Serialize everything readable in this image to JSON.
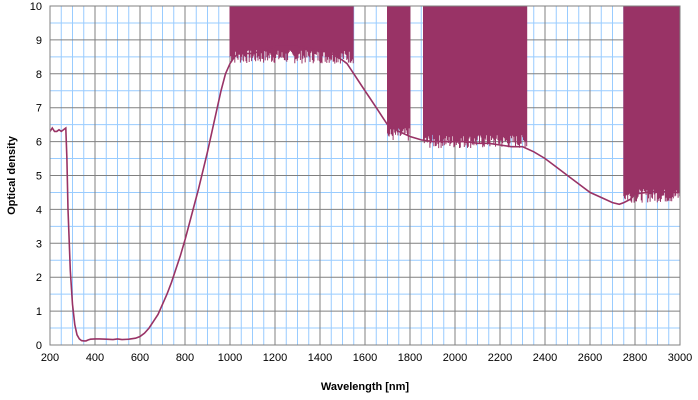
{
  "chart_data": {
    "type": "line",
    "title": "",
    "xlabel": "Wavelength [nm]",
    "ylabel": "Optical density",
    "xlim": [
      200,
      3000
    ],
    "ylim": [
      0,
      10
    ],
    "x_ticks": [
      200,
      400,
      600,
      800,
      1000,
      1200,
      1400,
      1600,
      1800,
      2000,
      2200,
      2400,
      2600,
      2800,
      3000
    ],
    "y_ticks": [
      0,
      1,
      2,
      3,
      4,
      5,
      6,
      7,
      8,
      9,
      10
    ],
    "grid": true,
    "grid_minor": true,
    "legend": "none",
    "colors": {
      "line": "#993366",
      "major_grid": "#808080",
      "minor_grid": "#99CCFF"
    },
    "series": [
      {
        "x": [
          200,
          210,
          220,
          230,
          240,
          250,
          260,
          270,
          275,
          280,
          290,
          300,
          310,
          320,
          330,
          340,
          350,
          360,
          370,
          380,
          400,
          420,
          450,
          480,
          500,
          520,
          550,
          580,
          600,
          620,
          640,
          660,
          680,
          700,
          720,
          740,
          760,
          780,
          800,
          820,
          840,
          860,
          880,
          900,
          920,
          940,
          960,
          980,
          1000,
          1020,
          1040,
          1060,
          1100,
          1150,
          1200,
          1250,
          1300,
          1350,
          1400,
          1450,
          1500,
          1520,
          1550,
          1580,
          1600,
          1620,
          1650,
          1680,
          1700,
          1750,
          1800,
          1850,
          1900,
          1950,
          2000,
          2050,
          2100,
          2150,
          2200,
          2250,
          2300,
          2350,
          2400,
          2450,
          2500,
          2550,
          2600,
          2650,
          2700,
          2730,
          2750,
          2780,
          2800,
          2850,
          2900,
          2950,
          3000
        ],
        "y": [
          6.3,
          6.4,
          6.3,
          6.3,
          6.35,
          6.3,
          6.35,
          6.4,
          5.5,
          4.0,
          2.2,
          1.2,
          0.6,
          0.3,
          0.18,
          0.13,
          0.12,
          0.12,
          0.15,
          0.17,
          0.18,
          0.18,
          0.17,
          0.16,
          0.18,
          0.16,
          0.17,
          0.2,
          0.25,
          0.35,
          0.5,
          0.7,
          0.9,
          1.2,
          1.5,
          1.85,
          2.25,
          2.65,
          3.1,
          3.6,
          4.1,
          4.6,
          5.15,
          5.7,
          6.3,
          6.9,
          7.5,
          8.0,
          8.3,
          8.5,
          8.6,
          8.6,
          8.6,
          8.7,
          8.8,
          8.8,
          8.8,
          8.75,
          8.7,
          8.6,
          8.4,
          8.3,
          8.0,
          7.7,
          7.5,
          7.3,
          7.0,
          6.7,
          6.5,
          6.3,
          6.15,
          6.05,
          6.0,
          6.0,
          6.0,
          6.0,
          5.95,
          5.95,
          5.9,
          5.85,
          5.85,
          5.7,
          5.5,
          5.25,
          5.0,
          4.75,
          4.5,
          4.35,
          4.2,
          4.15,
          4.2,
          4.3,
          4.45,
          4.5,
          4.55,
          4.5,
          4.5
        ],
        "noise_bands": [
          {
            "x": [
              1000,
              1550
            ],
            "y": [
              8.3,
              10
            ]
          },
          {
            "x": [
              1700,
              1800
            ],
            "y": [
              6.0,
              10
            ]
          },
          {
            "x": [
              1860,
              2320
            ],
            "y": [
              5.8,
              10
            ]
          },
          {
            "x": [
              2750,
              3000
            ],
            "y": [
              4.2,
              10
            ]
          }
        ]
      }
    ]
  }
}
